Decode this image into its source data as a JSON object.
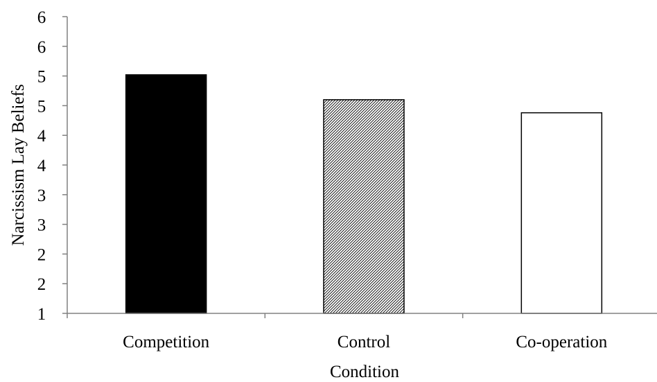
{
  "chart_data": {
    "type": "bar",
    "categories": [
      "Competition",
      "Control",
      "Co-operation"
    ],
    "values": [
      5.02,
      4.6,
      4.38
    ],
    "title": "",
    "xlabel": "Condition",
    "ylabel": "Narcissism Lay Beliefs",
    "ylim": [
      1,
      6
    ],
    "y_tick_labels": [
      "1",
      "2",
      "2",
      "3",
      "3",
      "4",
      "4",
      "5",
      "5",
      "6",
      "6"
    ],
    "bar_fills": [
      "solid-black",
      "diagonal-hatch",
      "white"
    ],
    "grid": false,
    "legend": "none"
  }
}
